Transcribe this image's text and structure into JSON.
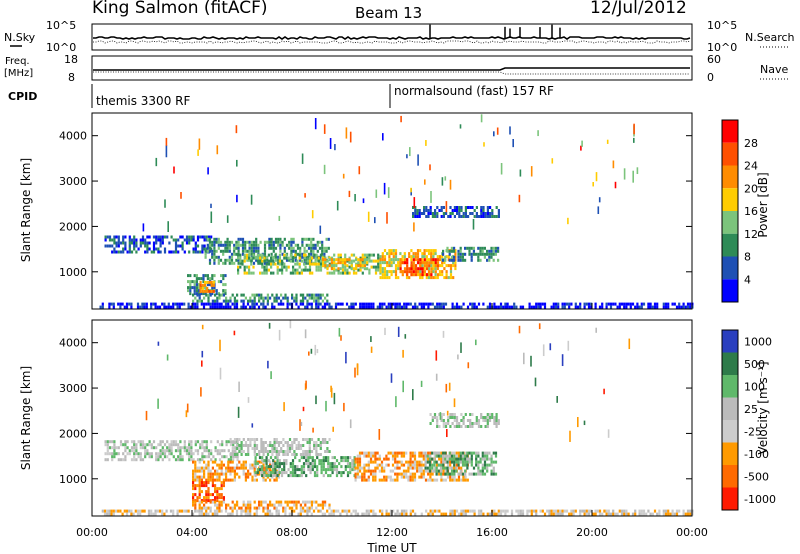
{
  "header": {
    "station": "King Salmon (fitACF)",
    "beam": "Beam 13",
    "date": "12/Jul/2012"
  },
  "param_panel": {
    "nsky_label": "N.Sky",
    "nsearch_label": "N.Search",
    "nsky_ticks": [
      "10^5",
      "10^0"
    ],
    "freq_label_1": "Freq.",
    "freq_label_2": "[MHz]",
    "freq_ticks": [
      "18",
      "8"
    ],
    "nave_label": "Nave",
    "nave_ticks": [
      "60",
      "0"
    ],
    "cpid_label": "CPID",
    "cpid_segments": [
      {
        "label": "themis 3300 RF",
        "start_hour": 0,
        "end_hour": 12
      },
      {
        "label": "normalsound (fast) 157 RF",
        "start_hour": 12,
        "end_hour": 24
      }
    ]
  },
  "colors": {
    "power_scale": [
      "#0000ff",
      "#1e50b4",
      "#2e8b57",
      "#7cc47c",
      "#ffcc00",
      "#ff8c00",
      "#ff5000",
      "#ff0000"
    ],
    "velocity_scale": [
      "#2a3fbf",
      "#2e7b4a",
      "#5fb86a",
      "#bbbbbb",
      "#cccccc",
      "#ff9a00",
      "#ff6a00",
      "#ff1a00"
    ]
  },
  "chart_data": [
    {
      "type": "heatmap",
      "title": "",
      "xlabel": "",
      "ylabel": "Slant Range [km]",
      "colorbar_label": "Power [dB]",
      "colorbar_ticks": [
        4,
        8,
        12,
        16,
        20,
        24,
        28
      ],
      "xlim": [
        0,
        24
      ],
      "ylim": [
        180,
        4500
      ],
      "yticks": [
        1000,
        2000,
        3000,
        4000
      ],
      "regions": [
        {
          "t0": 0.5,
          "t1": 4.8,
          "r0": 1450,
          "r1": 1800,
          "level": 1
        },
        {
          "t0": 4.5,
          "t1": 9.5,
          "r0": 1200,
          "r1": 1750,
          "level": 2
        },
        {
          "t0": 5.8,
          "t1": 8.5,
          "r0": 1000,
          "r1": 1400,
          "level": 3
        },
        {
          "t0": 8.5,
          "t1": 11.5,
          "r0": 950,
          "r1": 1400,
          "level": 3
        },
        {
          "t0": 9.2,
          "t1": 11.0,
          "r0": 1050,
          "r1": 1300,
          "level": 4
        },
        {
          "t0": 11.5,
          "t1": 14.5,
          "r0": 900,
          "r1": 1500,
          "level": 4
        },
        {
          "t0": 12.3,
          "t1": 13.8,
          "r0": 950,
          "r1": 1300,
          "level": 6
        },
        {
          "t0": 14.0,
          "t1": 16.2,
          "r0": 1250,
          "r1": 1550,
          "level": 2
        },
        {
          "t0": 3.8,
          "t1": 5.3,
          "r0": 550,
          "r1": 950,
          "level": 2
        },
        {
          "t0": 4.3,
          "t1": 4.9,
          "r0": 600,
          "r1": 800,
          "level": 5
        },
        {
          "t0": 4.0,
          "t1": 9.5,
          "r0": 380,
          "r1": 520,
          "level": 2
        },
        {
          "t0": 12.8,
          "t1": 16.3,
          "r0": 2200,
          "r1": 2450,
          "level": 1
        },
        {
          "t0": 0.3,
          "t1": 24,
          "r0": 190,
          "r1": 320,
          "level": 0
        }
      ]
    },
    {
      "type": "heatmap",
      "title": "",
      "xlabel": "Time UT",
      "ylabel": "Slant Range [km]",
      "colorbar_label": "Velocity [m s⁻¹]",
      "colorbar_ticks": [
        1000,
        500,
        100,
        25,
        -25,
        -100,
        -500,
        -1000
      ],
      "xlim": [
        0,
        24
      ],
      "ylim": [
        180,
        4500
      ],
      "xticks": [
        "00:00",
        "04:00",
        "08:00",
        "12:00",
        "16:00",
        "20:00",
        "00:00"
      ],
      "yticks": [
        1000,
        2000,
        3000,
        4000
      ],
      "regions": [
        {
          "t0": 0.5,
          "t1": 5.8,
          "r0": 1450,
          "r1": 1850,
          "level": 3
        },
        {
          "t0": 5.5,
          "t1": 9.5,
          "r0": 1550,
          "r1": 1900,
          "level": 3
        },
        {
          "t0": 4.0,
          "t1": 7.5,
          "r0": 1000,
          "r1": 1400,
          "level": 5
        },
        {
          "t0": 6.5,
          "t1": 10.5,
          "r0": 1050,
          "r1": 1500,
          "level": 2
        },
        {
          "t0": 10.5,
          "t1": 15.0,
          "r0": 950,
          "r1": 1600,
          "level": 5
        },
        {
          "t0": 13.3,
          "t1": 16.2,
          "r0": 1100,
          "r1": 1600,
          "level": 2
        },
        {
          "t0": 4.0,
          "t1": 5.3,
          "r0": 550,
          "r1": 950,
          "level": 6
        },
        {
          "t0": 4.0,
          "t1": 9.5,
          "r0": 380,
          "r1": 520,
          "level": 5
        },
        {
          "t0": 13.5,
          "t1": 16.3,
          "r0": 2150,
          "r1": 2450,
          "level": 3
        },
        {
          "t0": 0.3,
          "t1": 24,
          "r0": 190,
          "r1": 320,
          "level": 4
        }
      ]
    }
  ]
}
